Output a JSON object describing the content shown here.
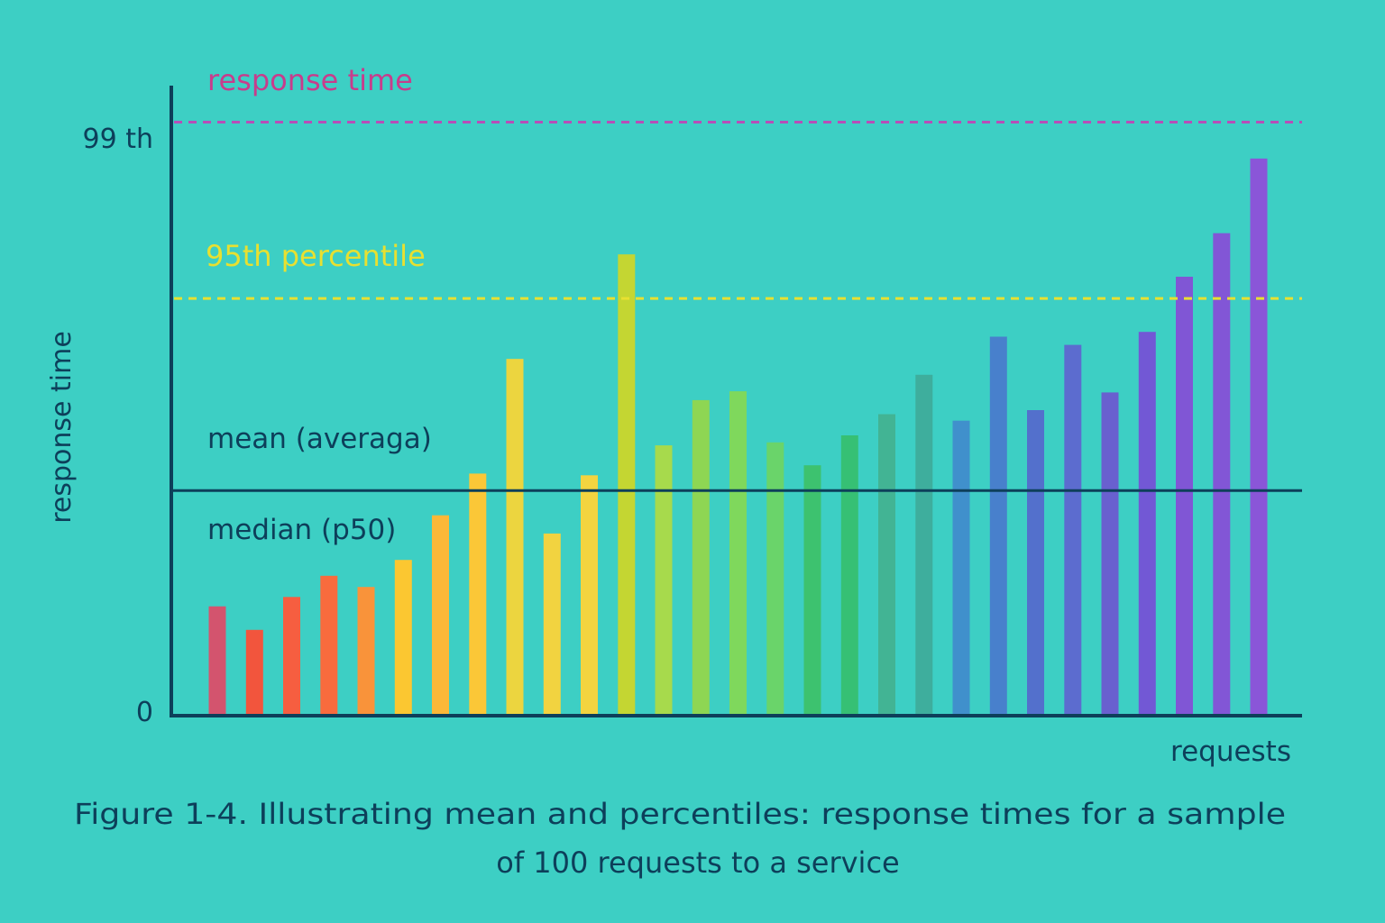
{
  "chart_data": {
    "type": "bar",
    "title": "",
    "caption_line1": "Figure 1-4. Illustrating mean and percentiles: response times for a sample",
    "caption_line2": "of 100 requests to a service",
    "xlabel": "requests",
    "ylabel": "response time",
    "ylim": [
      0,
      100
    ],
    "y_ticks": [
      {
        "label": "0",
        "value": 0
      },
      {
        "label": "99 th",
        "value": 100
      }
    ],
    "values": [
      18.6,
      14.6,
      20.2,
      23.8,
      21.9,
      26.5,
      34.1,
      41.2,
      60.7,
      31.0,
      40.9,
      78.5,
      46.0,
      53.7,
      55.2,
      46.5,
      42.6,
      47.7,
      51.3,
      58.0,
      50.2,
      64.5,
      52.0,
      63.1,
      55.0,
      65.3,
      74.7,
      82.1,
      94.8
    ],
    "colors": [
      "#d3546e",
      "#f2553d",
      "#f65e40",
      "#f86b3d",
      "#f9933a",
      "#fbc731",
      "#fbb838",
      "#fbc737",
      "#ecd53f",
      "#f2d340",
      "#f3d440",
      "#c4d632",
      "#a7da4c",
      "#8ed653",
      "#7fd85c",
      "#6ad46a",
      "#3dc26f",
      "#36c074",
      "#42b494",
      "#3eae9d",
      "#4090cc",
      "#4880cc",
      "#5370cc",
      "#5c6ccf",
      "#6960cf",
      "#7258d5",
      "#8056d5",
      "#8256d6",
      "#8a56d8"
    ],
    "reference_lines": [
      {
        "name": "response time",
        "label": "response time",
        "value": 101,
        "style": "dashed",
        "color": "#c83c8c",
        "line_color": "#b74eb8"
      },
      {
        "name": "95th percentile",
        "label": "95th percentile",
        "value": 71,
        "style": "dashed",
        "color": "#e8e030",
        "line_color": "#e8e030"
      },
      {
        "name": "mean",
        "label": "mean (averaga)",
        "value": 38.3,
        "style": "solid",
        "color": "#0d3f5a",
        "line_color": "#0d3f5a"
      }
    ],
    "annotations": [
      {
        "label": "median (p50)",
        "color": "#0d3f5a"
      }
    ],
    "grid": false,
    "legend": "none"
  }
}
